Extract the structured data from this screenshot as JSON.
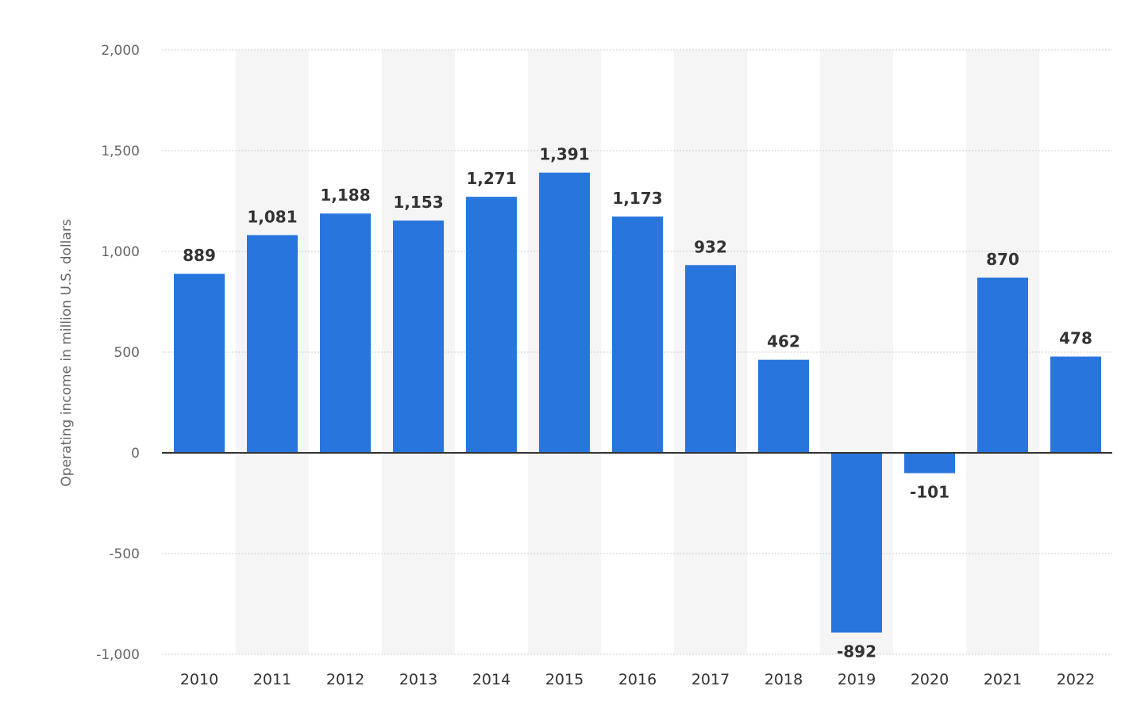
{
  "chart_data": {
    "type": "bar",
    "title": "",
    "xlabel": "",
    "ylabel": "Operating income in million U.S. dollars",
    "categories": [
      "2010",
      "2011",
      "2012",
      "2013",
      "2014",
      "2015",
      "2016",
      "2017",
      "2018",
      "2019",
      "2020",
      "2021",
      "2022"
    ],
    "values": [
      889,
      1081,
      1188,
      1153,
      1271,
      1391,
      1173,
      932,
      462,
      -892,
      -101,
      870,
      478
    ],
    "value_labels": [
      "889",
      "1,081",
      "1,188",
      "1,153",
      "1,271",
      "1,391",
      "1,173",
      "932",
      "462",
      "-892",
      "-101",
      "870",
      "478"
    ],
    "ylim": [
      -1000,
      2000
    ],
    "yticks": [
      -1000,
      -500,
      0,
      500,
      1000,
      1500,
      2000
    ],
    "ytick_labels": [
      "-1,000",
      "-500",
      "0",
      "500",
      "1,000",
      "1,500",
      "2,000"
    ],
    "grid": true,
    "legend": "none",
    "bar_color": "#2876dd",
    "band_color": "#f5f5f5"
  }
}
